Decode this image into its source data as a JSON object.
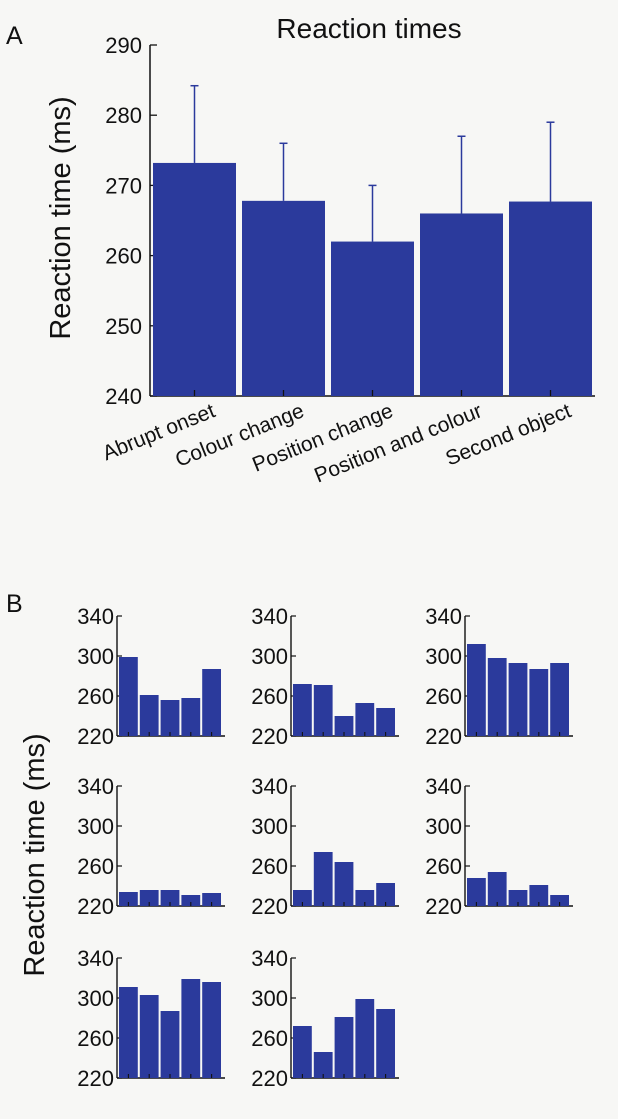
{
  "figure": {
    "colors": {
      "bar": "#2b3a9c",
      "axis": "#111111",
      "error": "#2b3a9c",
      "background": "#f7f7f5"
    }
  },
  "chart_data": [
    {
      "panel": "A",
      "type": "bar",
      "title": "Reaction times",
      "xlabel": "",
      "ylabel": "Reaction time (ms)",
      "categories": [
        "Abrupt onset",
        "Colour change",
        "Position change",
        "Position and colour",
        "Second object"
      ],
      "values": [
        273.2,
        267.8,
        262.0,
        266.0,
        267.7
      ],
      "error_upper": [
        284.2,
        276.0,
        270.0,
        277.0,
        279.0
      ],
      "ylim": [
        240,
        290
      ],
      "yticks": [
        240,
        250,
        260,
        270,
        280,
        290
      ],
      "grid": false
    },
    {
      "panel": "B",
      "type": "bar",
      "ylabel": "Reaction time (ms)",
      "ylim": [
        220,
        340
      ],
      "yticks": [
        220,
        260,
        300,
        340
      ],
      "grid": false,
      "subplots": [
        {
          "values": [
            299,
            261,
            256,
            258,
            287
          ]
        },
        {
          "values": [
            272,
            271,
            240,
            253,
            248
          ]
        },
        {
          "values": [
            312,
            298,
            293,
            287,
            293
          ]
        },
        {
          "values": [
            234,
            236,
            236,
            231,
            233
          ]
        },
        {
          "values": [
            236,
            274,
            264,
            236,
            243
          ]
        },
        {
          "values": [
            248,
            254,
            236,
            241,
            231
          ]
        },
        {
          "values": [
            311,
            303,
            287,
            319,
            316
          ]
        },
        {
          "values": [
            272,
            246,
            281,
            299,
            289
          ]
        }
      ]
    }
  ]
}
